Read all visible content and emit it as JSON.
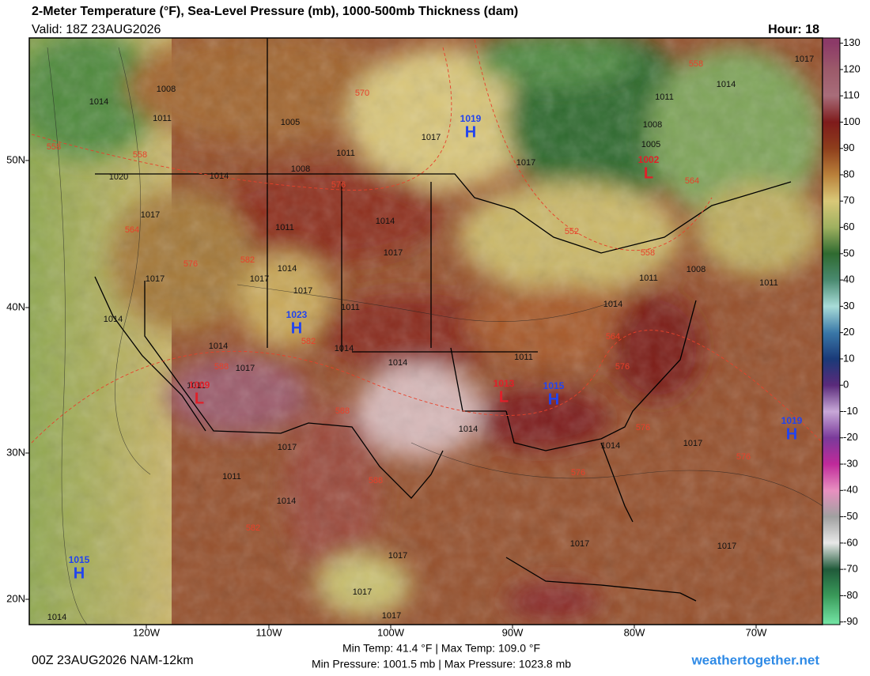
{
  "header": {
    "title": "2-Meter Temperature (°F), Sea-Level Pressure (mb), 1000-500mb Thickness (dam)",
    "valid": "Valid: 18Z 23AUG2026",
    "hour": "Hour: 18"
  },
  "map": {
    "lat_labels": [
      "50N",
      "40N",
      "30N",
      "20N"
    ],
    "lon_labels": [
      "120W",
      "110W",
      "100W",
      "90W",
      "80W",
      "70W"
    ],
    "isobar_labels": [
      1008,
      1014,
      1011,
      1005,
      1011,
      1008,
      1017,
      1017,
      1014,
      1020,
      1017,
      1011,
      1014,
      1017,
      1014,
      1017,
      1017,
      1017,
      1011,
      1014,
      1014,
      1014,
      1017,
      1014,
      1011,
      1011,
      1014,
      1011,
      1008,
      1011,
      1008,
      1005,
      1011,
      1014,
      1017,
      1014,
      1017,
      1011,
      1014,
      1017,
      1014,
      1017,
      1017,
      1017,
      1017,
      1017,
      1014
    ],
    "thickness_labels": [
      570,
      558,
      558,
      576,
      564,
      576,
      582,
      582,
      588,
      588,
      588,
      582,
      576,
      576,
      576,
      564,
      552,
      558,
      558,
      564,
      576
    ],
    "centers": [
      {
        "type": "H",
        "pressure": 1019
      },
      {
        "type": "H",
        "pressure": 1023
      },
      {
        "type": "H",
        "pressure": 1015
      },
      {
        "type": "H",
        "pressure": 1019
      },
      {
        "type": "H",
        "pressure": 1015
      },
      {
        "type": "L",
        "pressure": 1002
      },
      {
        "type": "L",
        "pressure": 1009
      },
      {
        "type": "L",
        "pressure": 1013
      }
    ]
  },
  "colorbar": {
    "ylim": [
      -91,
      132
    ],
    "yticks": [
      130,
      120,
      110,
      100,
      90,
      80,
      70,
      60,
      50,
      40,
      30,
      20,
      10,
      0,
      -10,
      -20,
      -30,
      -40,
      -50,
      -60,
      -70,
      -80,
      -90
    ],
    "colors": [
      "#8c3a68",
      "#9c5a6a",
      "#a86d7a",
      "#7e1b1b",
      "#8e3e1c",
      "#b9803a",
      "#d9c878",
      "#9fb060",
      "#2f6a30",
      "#4a8a70",
      "#a8dcd8",
      "#3a78a8",
      "#1a3a78",
      "#5a2a7a",
      "#c8a8d8",
      "#7a3a9a",
      "#c02a9a",
      "#e890c0",
      "#a0a0a0",
      "#e8e8e8",
      "#205a3a",
      "#3a9a5a",
      "#70e0a0"
    ]
  },
  "footer": {
    "run": "00Z 23AUG2026 NAM-12km",
    "temp_range": "Min Temp:  41.4 °F | Max Temp: 109.0 °F",
    "pressure_range": "Min Pressure: 1001.5 mb | Max Pressure: 1023.8 mb",
    "site": "weathertogether.net"
  }
}
